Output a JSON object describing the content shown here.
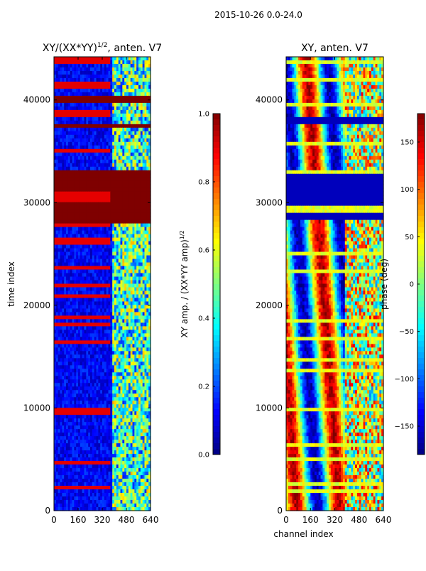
{
  "chart_data": {
    "suptitle": "2015-10-26 0.0-24.0",
    "colormap": [
      "#00007f",
      "#0000ff",
      "#007fff",
      "#00ffff",
      "#7fff7f",
      "#ffff00",
      "#ff7f00",
      "#ff0000",
      "#7f0000"
    ],
    "panels": [
      {
        "type": "heatmap",
        "title_main": "XY/(XX*YY)",
        "title_sup": "1/2",
        "title_tail": ", anten. V7",
        "xlabel": "",
        "ylabel": "time index",
        "xticks": [
          0,
          160,
          320,
          480,
          640
        ],
        "xlim": [
          0,
          640
        ],
        "yticks": [
          0,
          10000,
          20000,
          30000,
          40000
        ],
        "ylim": [
          0,
          44200
        ],
        "colorbar": {
          "label_main": "XY amp. / (XX*YY amp)",
          "label_sup": "1/2",
          "range": [
            0.0,
            1.0
          ],
          "ticks": [
            "0.0",
            "0.2",
            "0.4",
            "0.6",
            "0.8",
            "1.0"
          ],
          "tick_values": [
            0.0,
            0.2,
            0.4,
            0.6,
            0.8,
            1.0
          ]
        },
        "saturated_bands": [
          [
            27900,
            33000
          ],
          [
            37200,
            37700
          ],
          [
            39800,
            40400
          ]
        ]
      },
      {
        "type": "heatmap",
        "title_main": "XY, anten. V7",
        "title_sup": "",
        "title_tail": "",
        "xlabel": "channel index",
        "ylabel": "",
        "xticks": [
          0,
          160,
          320,
          480,
          640
        ],
        "xlim": [
          0,
          640
        ],
        "yticks": [
          0,
          10000,
          20000,
          30000,
          40000
        ],
        "ylim": [
          0,
          44200
        ],
        "colorbar": {
          "label_main": "phase (deg)",
          "label_sup": "",
          "range": [
            -180,
            180
          ],
          "ticks": [
            "−150",
            "−100",
            "−50",
            "0",
            "50",
            "100",
            "150"
          ],
          "tick_values": [
            -150,
            -100,
            -50,
            0,
            50,
            100,
            150
          ]
        },
        "low_bands": [
          [
            28300,
            32800
          ],
          [
            37800,
            38400
          ]
        ]
      }
    ]
  }
}
